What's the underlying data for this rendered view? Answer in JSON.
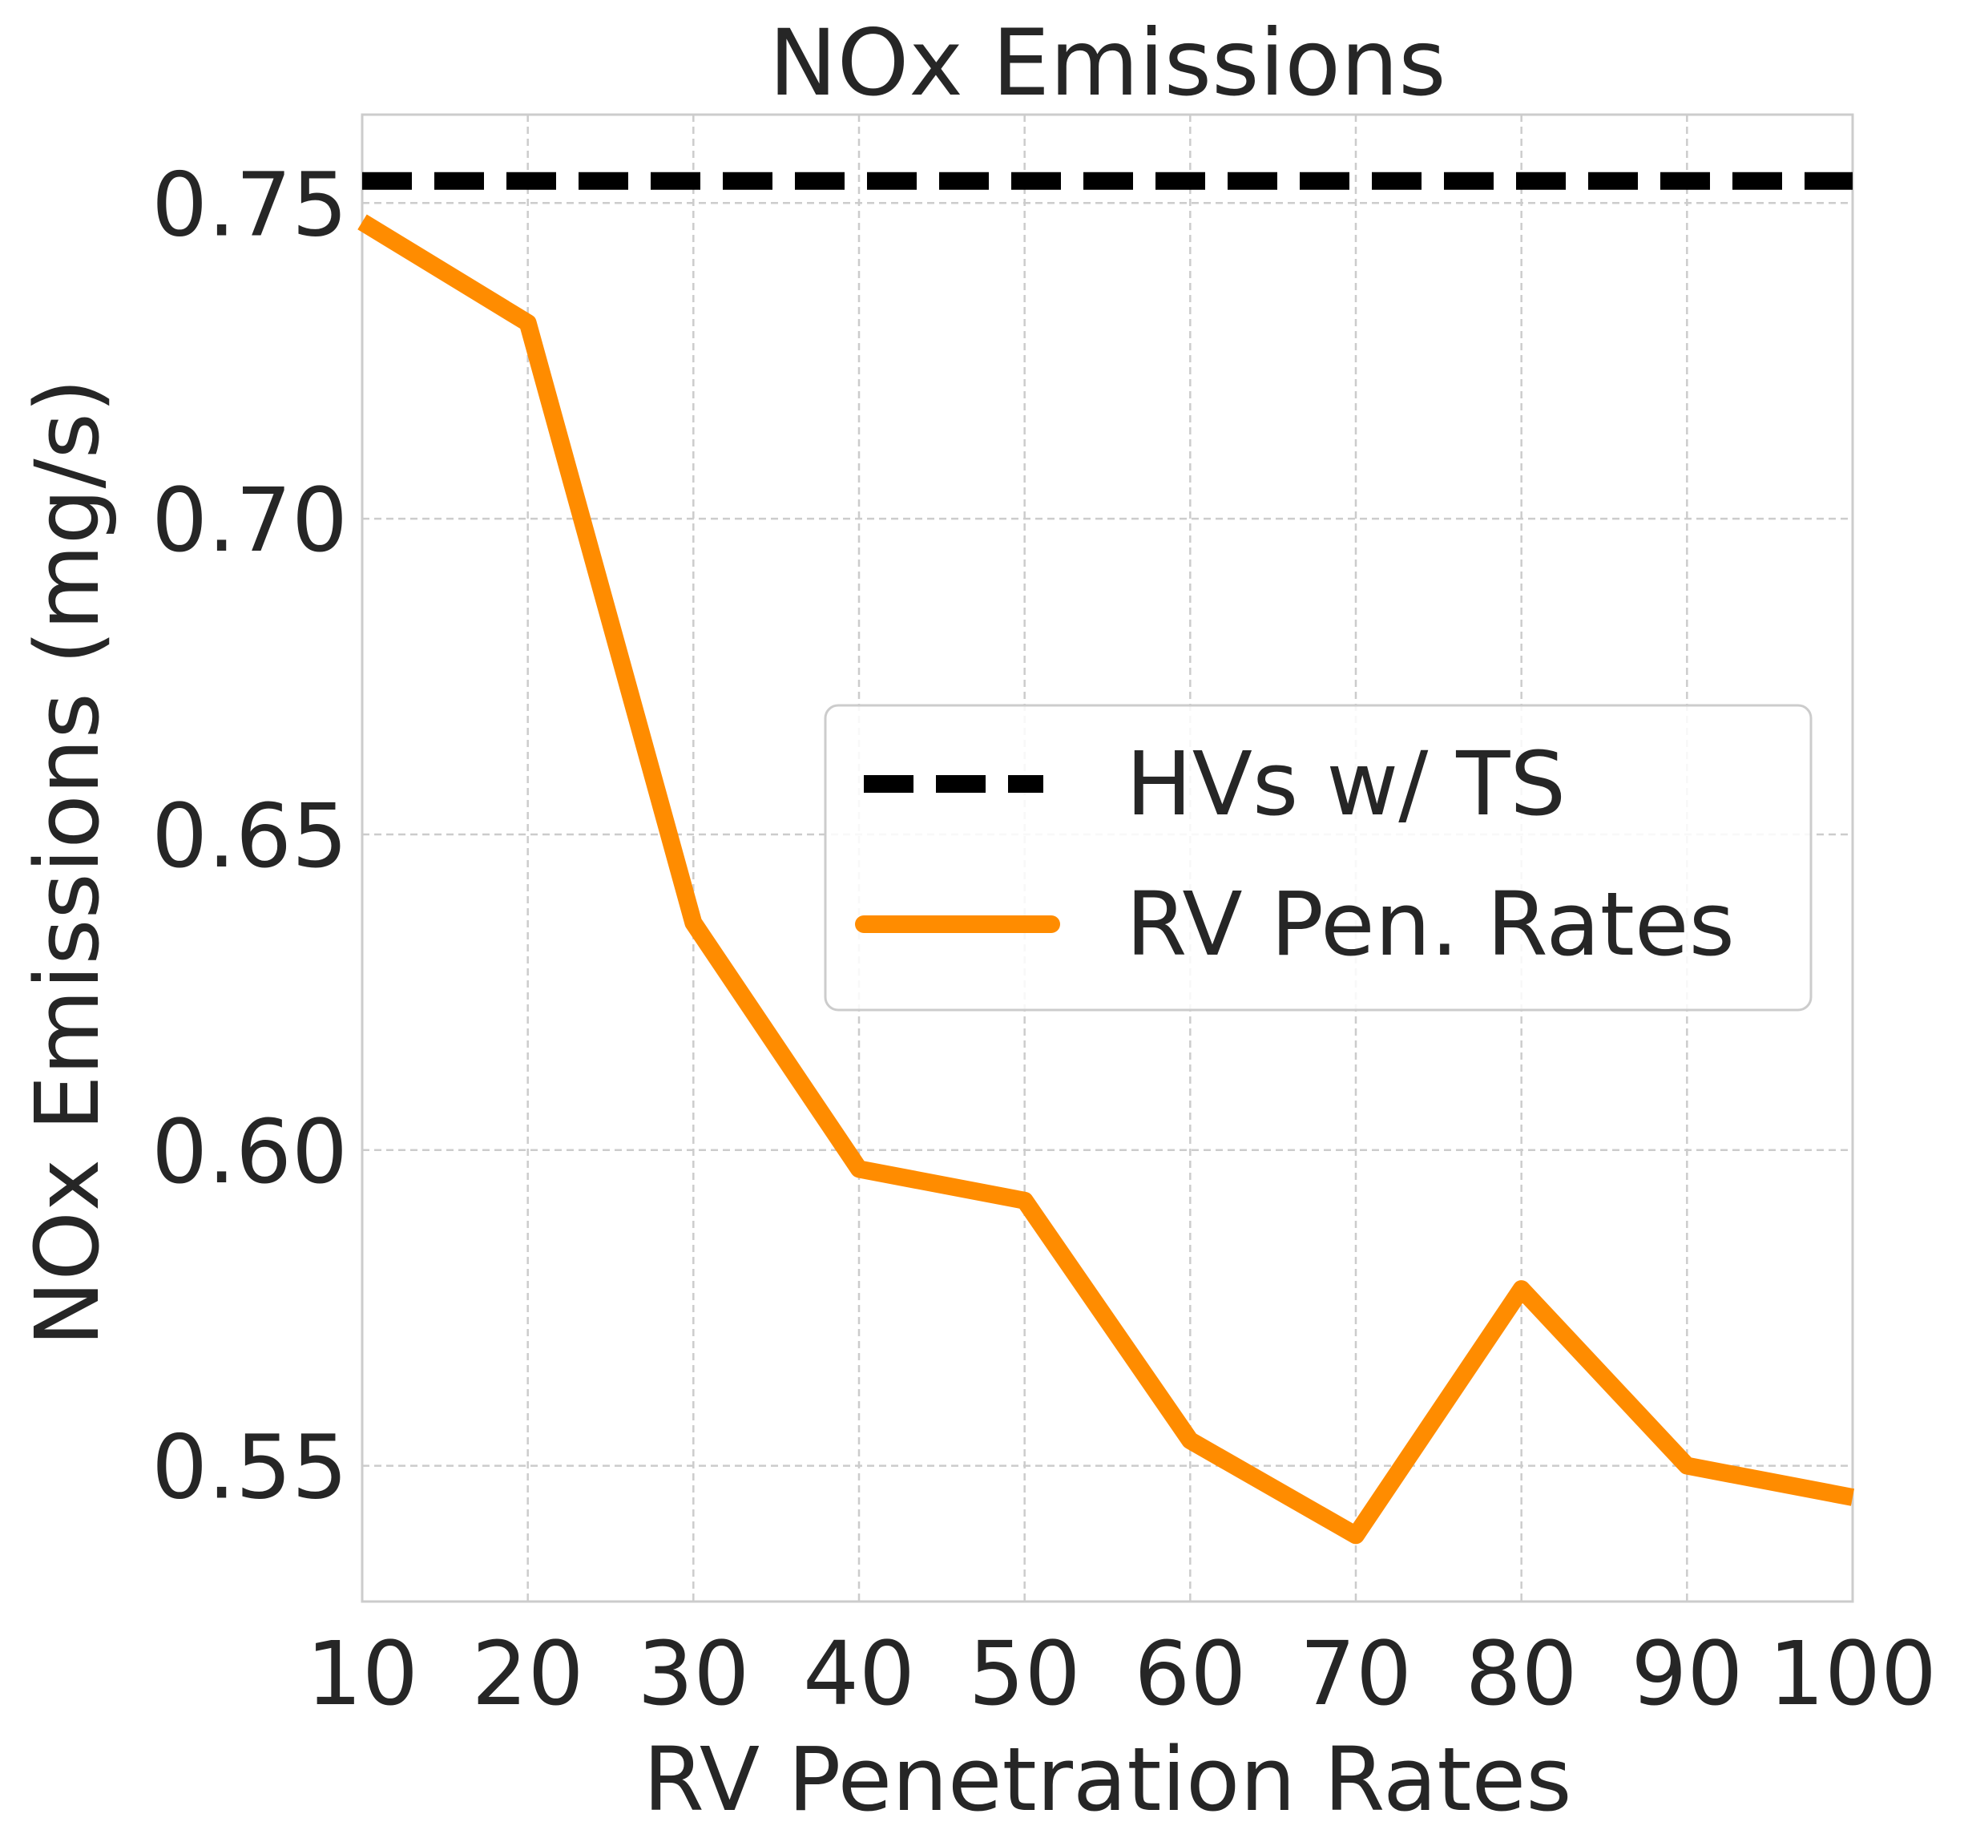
{
  "chart_data": {
    "type": "line",
    "title": "NOx Emissions",
    "xlabel": "RV Penetration Rates",
    "ylabel": "NOx Emissions (mg/s)",
    "x": [
      10,
      20,
      30,
      40,
      50,
      60,
      70,
      80,
      90,
      100
    ],
    "x_ticks": [
      "10",
      "20",
      "30",
      "40",
      "50",
      "60",
      "70",
      "80",
      "90",
      "100"
    ],
    "y_ticks": [
      "0.55",
      "0.60",
      "0.65",
      "0.70",
      "0.75"
    ],
    "y_tick_values": [
      0.55,
      0.6,
      0.65,
      0.7,
      0.75
    ],
    "xlim": [
      10,
      100
    ],
    "ylim": [
      0.5285,
      0.764
    ],
    "grid": true,
    "legend_position": "center-right",
    "series": [
      {
        "name": "HVs w/ TS",
        "style": "dashed",
        "color": "#000000",
        "values": [
          0.7535,
          0.7535,
          0.7535,
          0.7535,
          0.7535,
          0.7535,
          0.7535,
          0.7535,
          0.7535,
          0.7535
        ]
      },
      {
        "name": "RV Pen. Rates",
        "style": "solid",
        "color": "#ff8c00",
        "values": [
          0.747,
          0.731,
          0.636,
          0.597,
          0.592,
          0.554,
          0.539,
          0.578,
          0.55,
          0.545
        ]
      }
    ]
  }
}
